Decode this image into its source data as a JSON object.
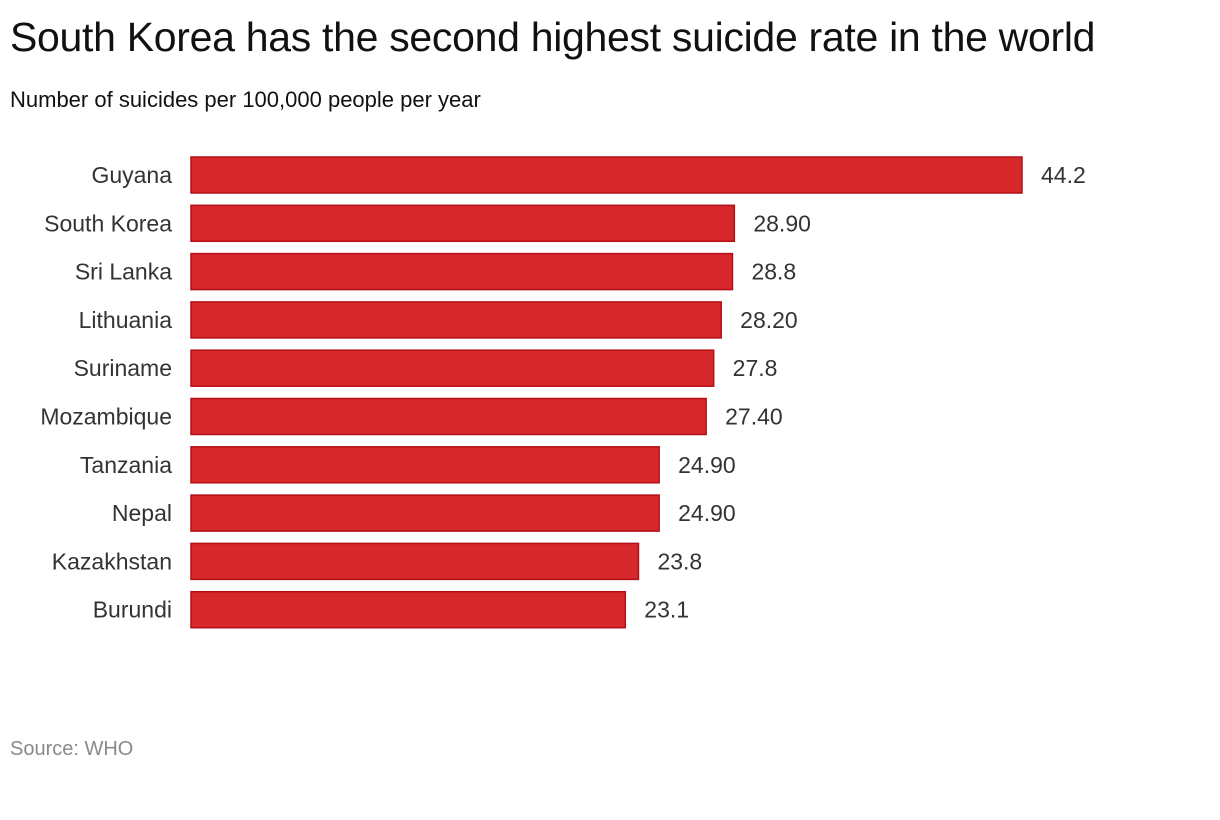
{
  "chart_data": {
    "type": "bar",
    "orientation": "horizontal",
    "title": "South Korea has the second highest suicide rate in the world",
    "subtitle": "Number of suicides per 100,000 people per year",
    "source": "Source: WHO",
    "categories": [
      "Guyana",
      "South Korea",
      "Sri Lanka",
      "Lithuania",
      "Suriname",
      "Mozambique",
      "Tanzania",
      "Nepal",
      "Kazakhstan",
      "Burundi"
    ],
    "values": [
      44.2,
      28.9,
      28.8,
      28.2,
      27.8,
      27.4,
      24.9,
      24.9,
      23.8,
      23.1
    ],
    "value_labels": [
      "44.2",
      "28.90",
      "28.8",
      "28.20",
      "27.8",
      "27.40",
      "24.90",
      "24.90",
      "23.8",
      "23.1"
    ],
    "xlim": [
      0,
      44.2
    ],
    "grid": false,
    "legend": "none",
    "colors": {
      "bar_fill": "#d7282b",
      "bar_stroke": "#b30f17",
      "label_text": "#333333"
    }
  }
}
